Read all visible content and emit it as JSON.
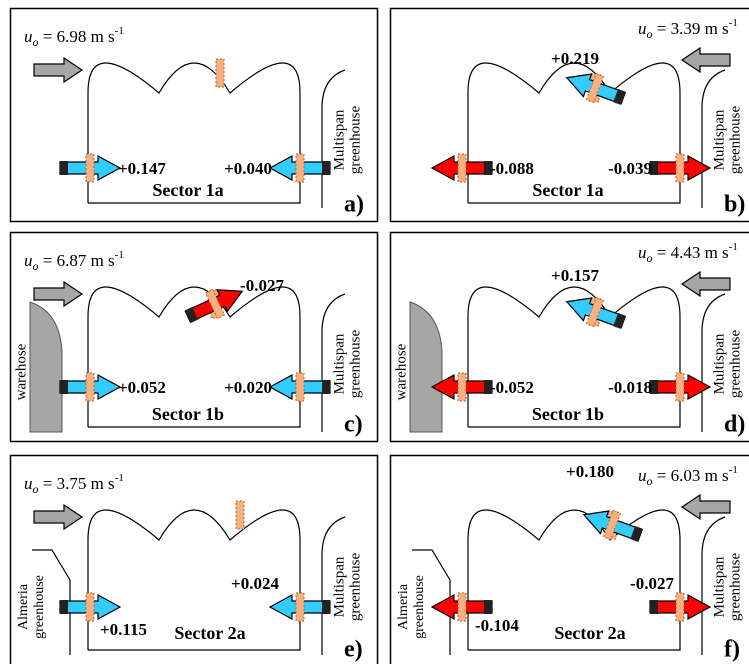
{
  "panels": [
    {
      "wind": {
        "symbol": "u",
        "subscript": "o",
        "text": " = 6.98 m s",
        "superscript": "-1"
      },
      "sector": "Sector 1a",
      "letter": "a)",
      "right_neighbor": [
        "Multispan",
        "greenhouse"
      ],
      "left_neighbor": [],
      "arrows": [
        "+0.147",
        "+0.040"
      ]
    },
    {
      "wind": {
        "symbol": "u",
        "subscript": "o",
        "text": " = 3.39 m s",
        "superscript": "-1"
      },
      "sector": "Sector 1a",
      "letter": "b)",
      "right_neighbor": [
        "Multispan",
        "greenhouse"
      ],
      "left_neighbor": [],
      "arrows": [
        "+0.219",
        "-0.088",
        "-0.039"
      ]
    },
    {
      "wind": {
        "symbol": "u",
        "subscript": "o",
        "text": " = 6.87 m s",
        "superscript": "-1"
      },
      "sector": "Sector 1b",
      "letter": "c)",
      "right_neighbor": [
        "Multispan",
        "greenhouse"
      ],
      "left_neighbor": [
        "warehose"
      ],
      "arrows": [
        "-0.027",
        "+0.052",
        "+0.020"
      ]
    },
    {
      "wind": {
        "symbol": "u",
        "subscript": "o",
        "text": " = 4.43 m s",
        "superscript": "-1"
      },
      "sector": "Sector 1b",
      "letter": "d)",
      "right_neighbor": [
        "Multispan",
        "greenhouse"
      ],
      "left_neighbor": [
        "warehose"
      ],
      "arrows": [
        "+0.157",
        "-0.052",
        "-0.018"
      ]
    },
    {
      "wind": {
        "symbol": "u",
        "subscript": "o",
        "text": " = 3.75 m s",
        "superscript": "-1"
      },
      "sector": "Sector 2a",
      "letter": "e)",
      "right_neighbor": [
        "Multispan",
        "greenhouse"
      ],
      "left_neighbor": [
        "Almeria",
        "greenhouse"
      ],
      "arrows": [
        "+0.115",
        "+0.024"
      ]
    },
    {
      "wind": {
        "symbol": "u",
        "subscript": "o",
        "text": " = 6.03 m s",
        "superscript": "-1"
      },
      "sector": "Sector 2a",
      "letter": "f)",
      "right_neighbor": [
        "Multispan",
        "greenhouse"
      ],
      "left_neighbor": [
        "Almeria",
        "greenhouse"
      ],
      "arrows": [
        "+0.180",
        "-0.104",
        "-0.027"
      ]
    }
  ]
}
